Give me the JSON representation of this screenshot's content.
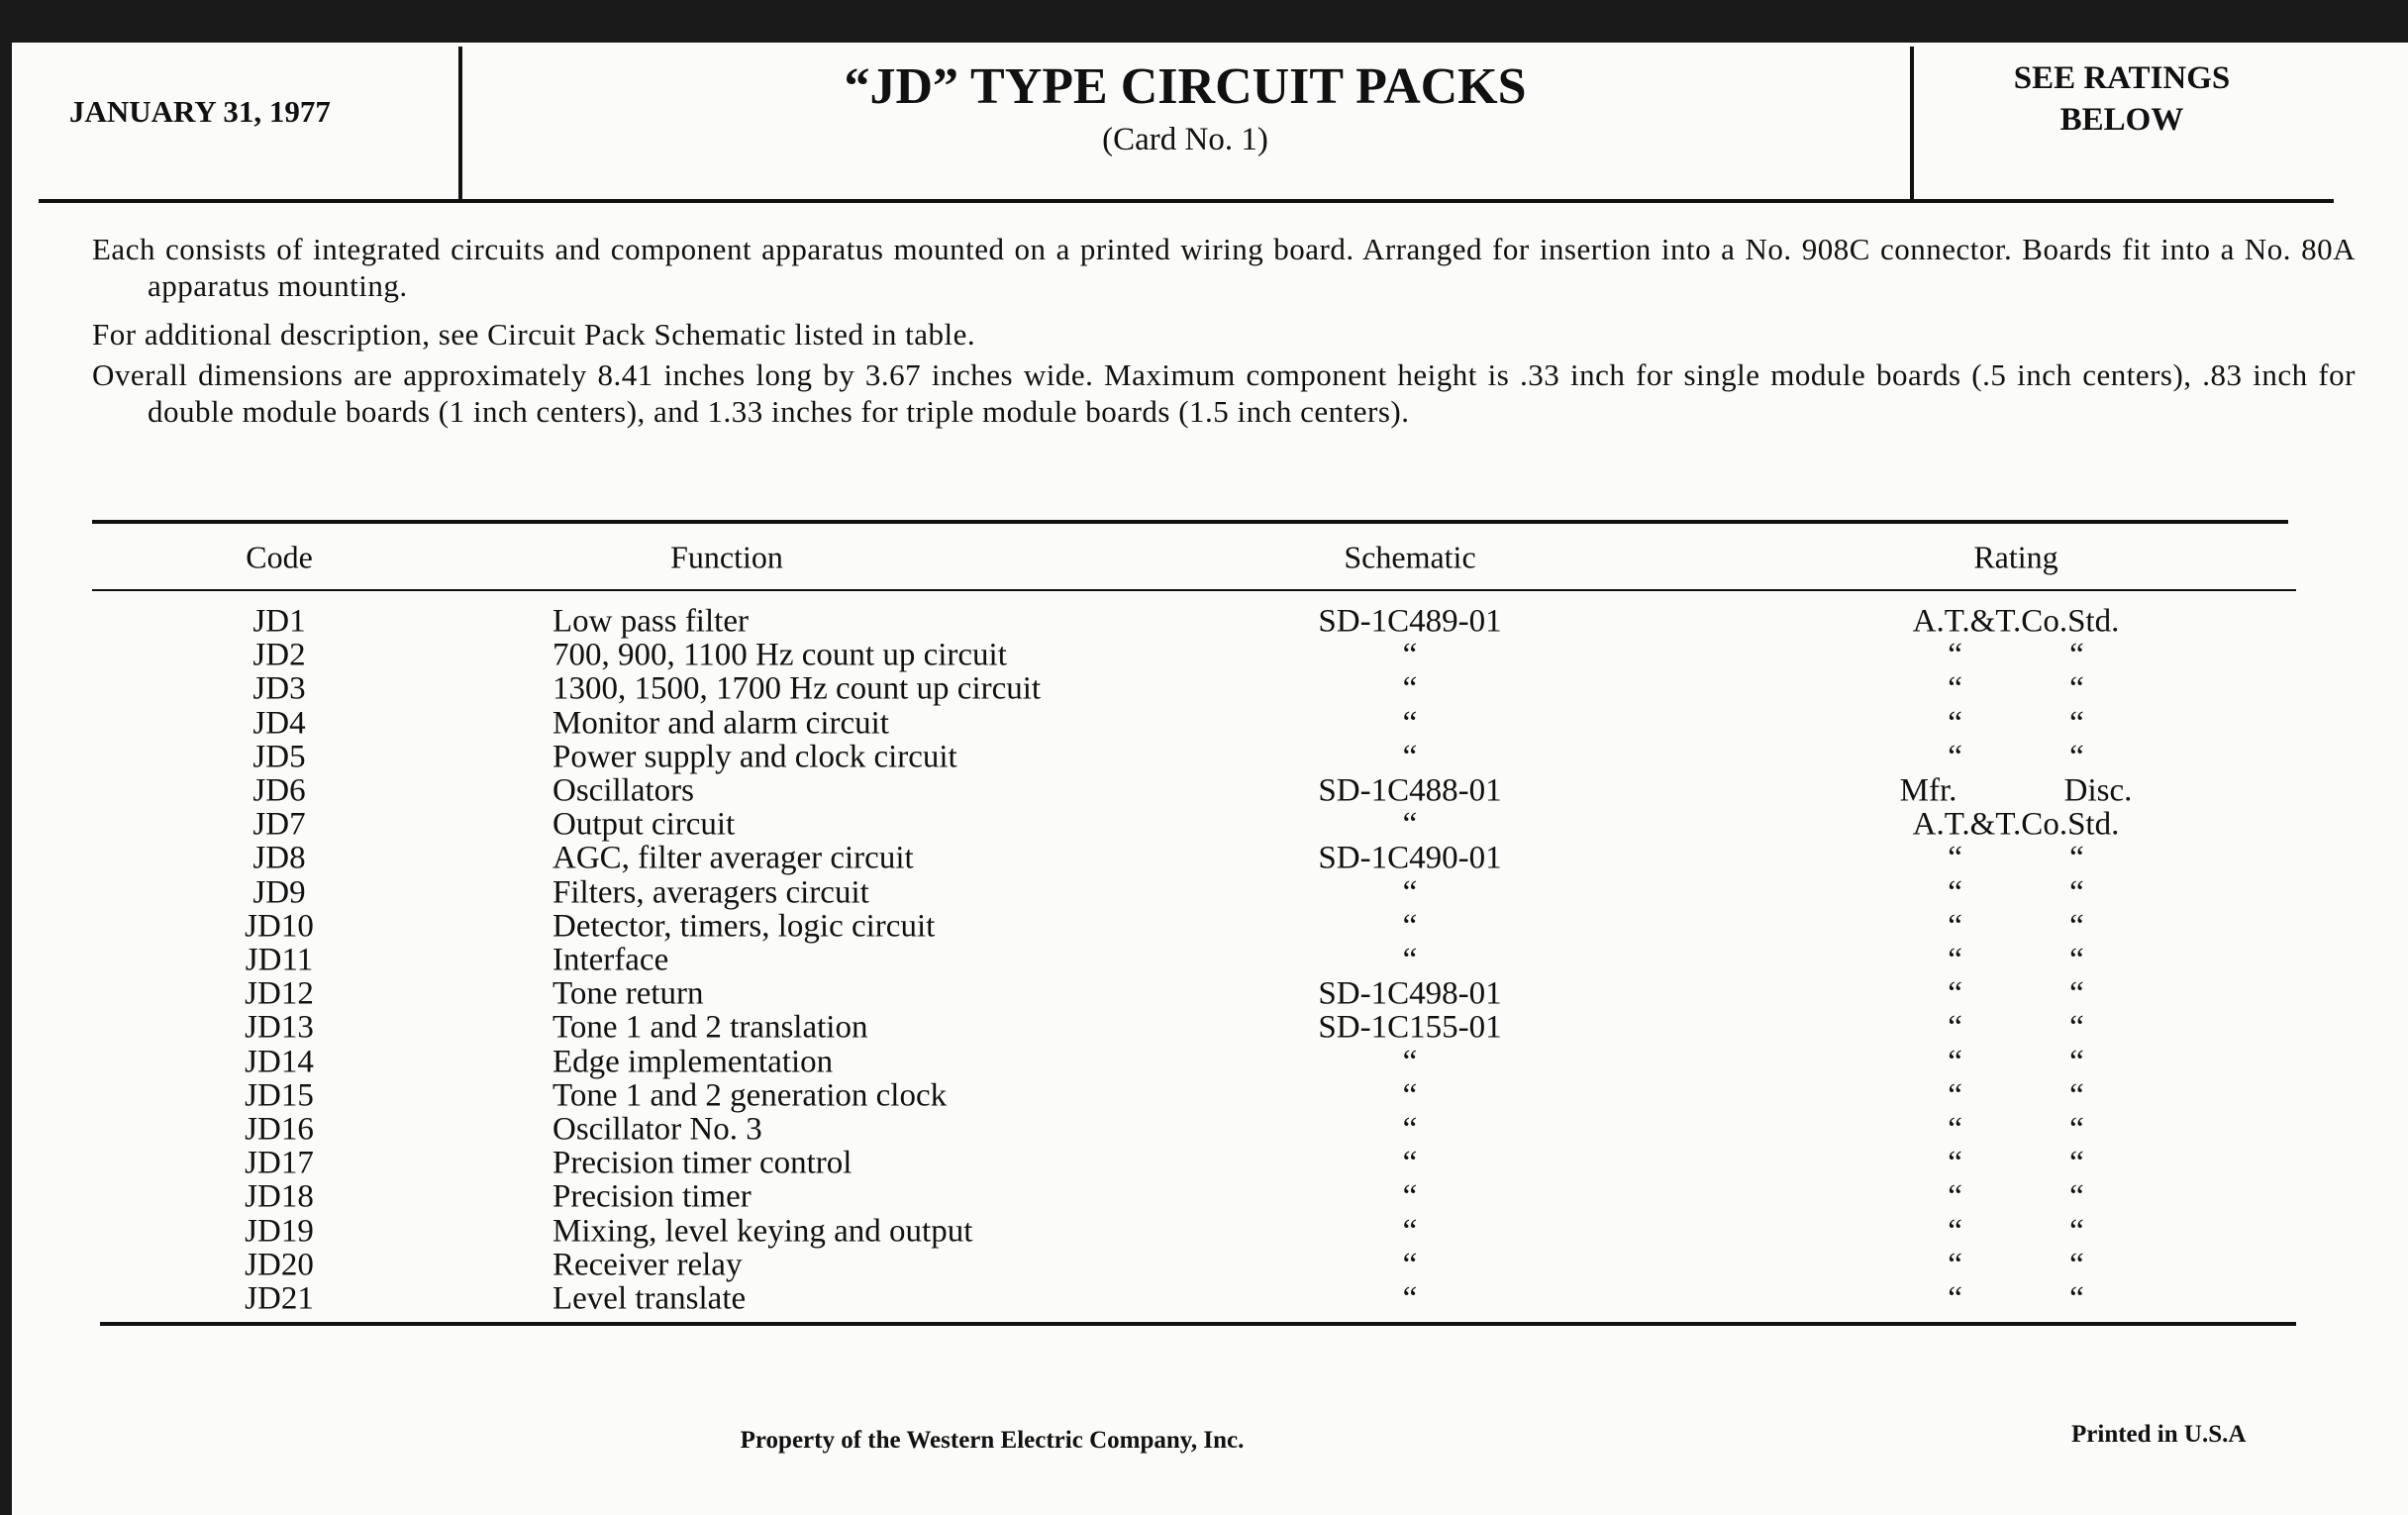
{
  "header": {
    "date": "JANUARY 31, 1977",
    "title": "“JD” TYPE CIRCUIT PACKS",
    "subtitle": "(Card No. 1)",
    "ratings_note": [
      "SEE RATINGS",
      "BELOW"
    ]
  },
  "description": [
    "Each consists of integrated circuits and component apparatus mounted on a printed wiring board. Arranged for insertion into a No. 908C connector. Boards fit into a No. 80A apparatus mounting.",
    "For additional description, see Circuit Pack Schematic listed in table.",
    "Overall dimensions are approximately 8.41 inches long by 3.67 inches wide. Maximum component height is .33 inch for single module boards (.5 inch centers), .83 inch for double module boards (1 inch centers), and 1.33 inches for triple module boards (1.5 inch centers)."
  ],
  "table": {
    "columns": [
      "Code",
      "Function",
      "Schematic",
      "Rating"
    ],
    "rows": [
      [
        "JD1",
        "Low pass filter",
        "SD-1C489-01",
        "A.T.&T.Co.Std."
      ],
      [
        "JD2",
        "700, 900, 1100 Hz count up circuit",
        "“",
        "“ “"
      ],
      [
        "JD3",
        "1300, 1500, 1700 Hz count up circuit",
        "“",
        "“ “"
      ],
      [
        "JD4",
        "Monitor and alarm circuit",
        "“",
        "“ “"
      ],
      [
        "JD5",
        "Power supply and clock circuit",
        "“",
        "“ “"
      ],
      [
        "JD6",
        "Oscillators",
        "SD-1C488-01",
        "Mfr. Disc."
      ],
      [
        "JD7",
        "Output circuit",
        "“",
        "A.T.&T.Co.Std."
      ],
      [
        "JD8",
        "AGC, filter averager circuit",
        "SD-1C490-01",
        "“ “"
      ],
      [
        "JD9",
        "Filters, averagers circuit",
        "“",
        "“ “"
      ],
      [
        "JD10",
        "Detector, timers, logic circuit",
        "“",
        "“ “"
      ],
      [
        "JD11",
        "Interface",
        "“",
        "“ “"
      ],
      [
        "JD12",
        "Tone return",
        "SD-1C498-01",
        "“ “"
      ],
      [
        "JD13",
        "Tone 1 and 2 translation",
        "SD-1C155-01",
        "“ “"
      ],
      [
        "JD14",
        "Edge implementation",
        "“",
        "“ “"
      ],
      [
        "JD15",
        "Tone 1 and 2 generation clock",
        "“",
        "“ “"
      ],
      [
        "JD16",
        "Oscillator No. 3",
        "“",
        "“ “"
      ],
      [
        "JD17",
        "Precision timer control",
        "“",
        "“ “"
      ],
      [
        "JD18",
        "Precision timer",
        "“",
        "“ “"
      ],
      [
        "JD19",
        "Mixing, level keying and output",
        "“",
        "“ “"
      ],
      [
        "JD20",
        "Receiver relay",
        "“",
        "“ “"
      ],
      [
        "JD21",
        "Level translate",
        "“",
        "“ “"
      ]
    ]
  },
  "footer": {
    "owner": "Property of the Western Electric Company, Inc.",
    "printed": "Printed in U.S.A"
  }
}
